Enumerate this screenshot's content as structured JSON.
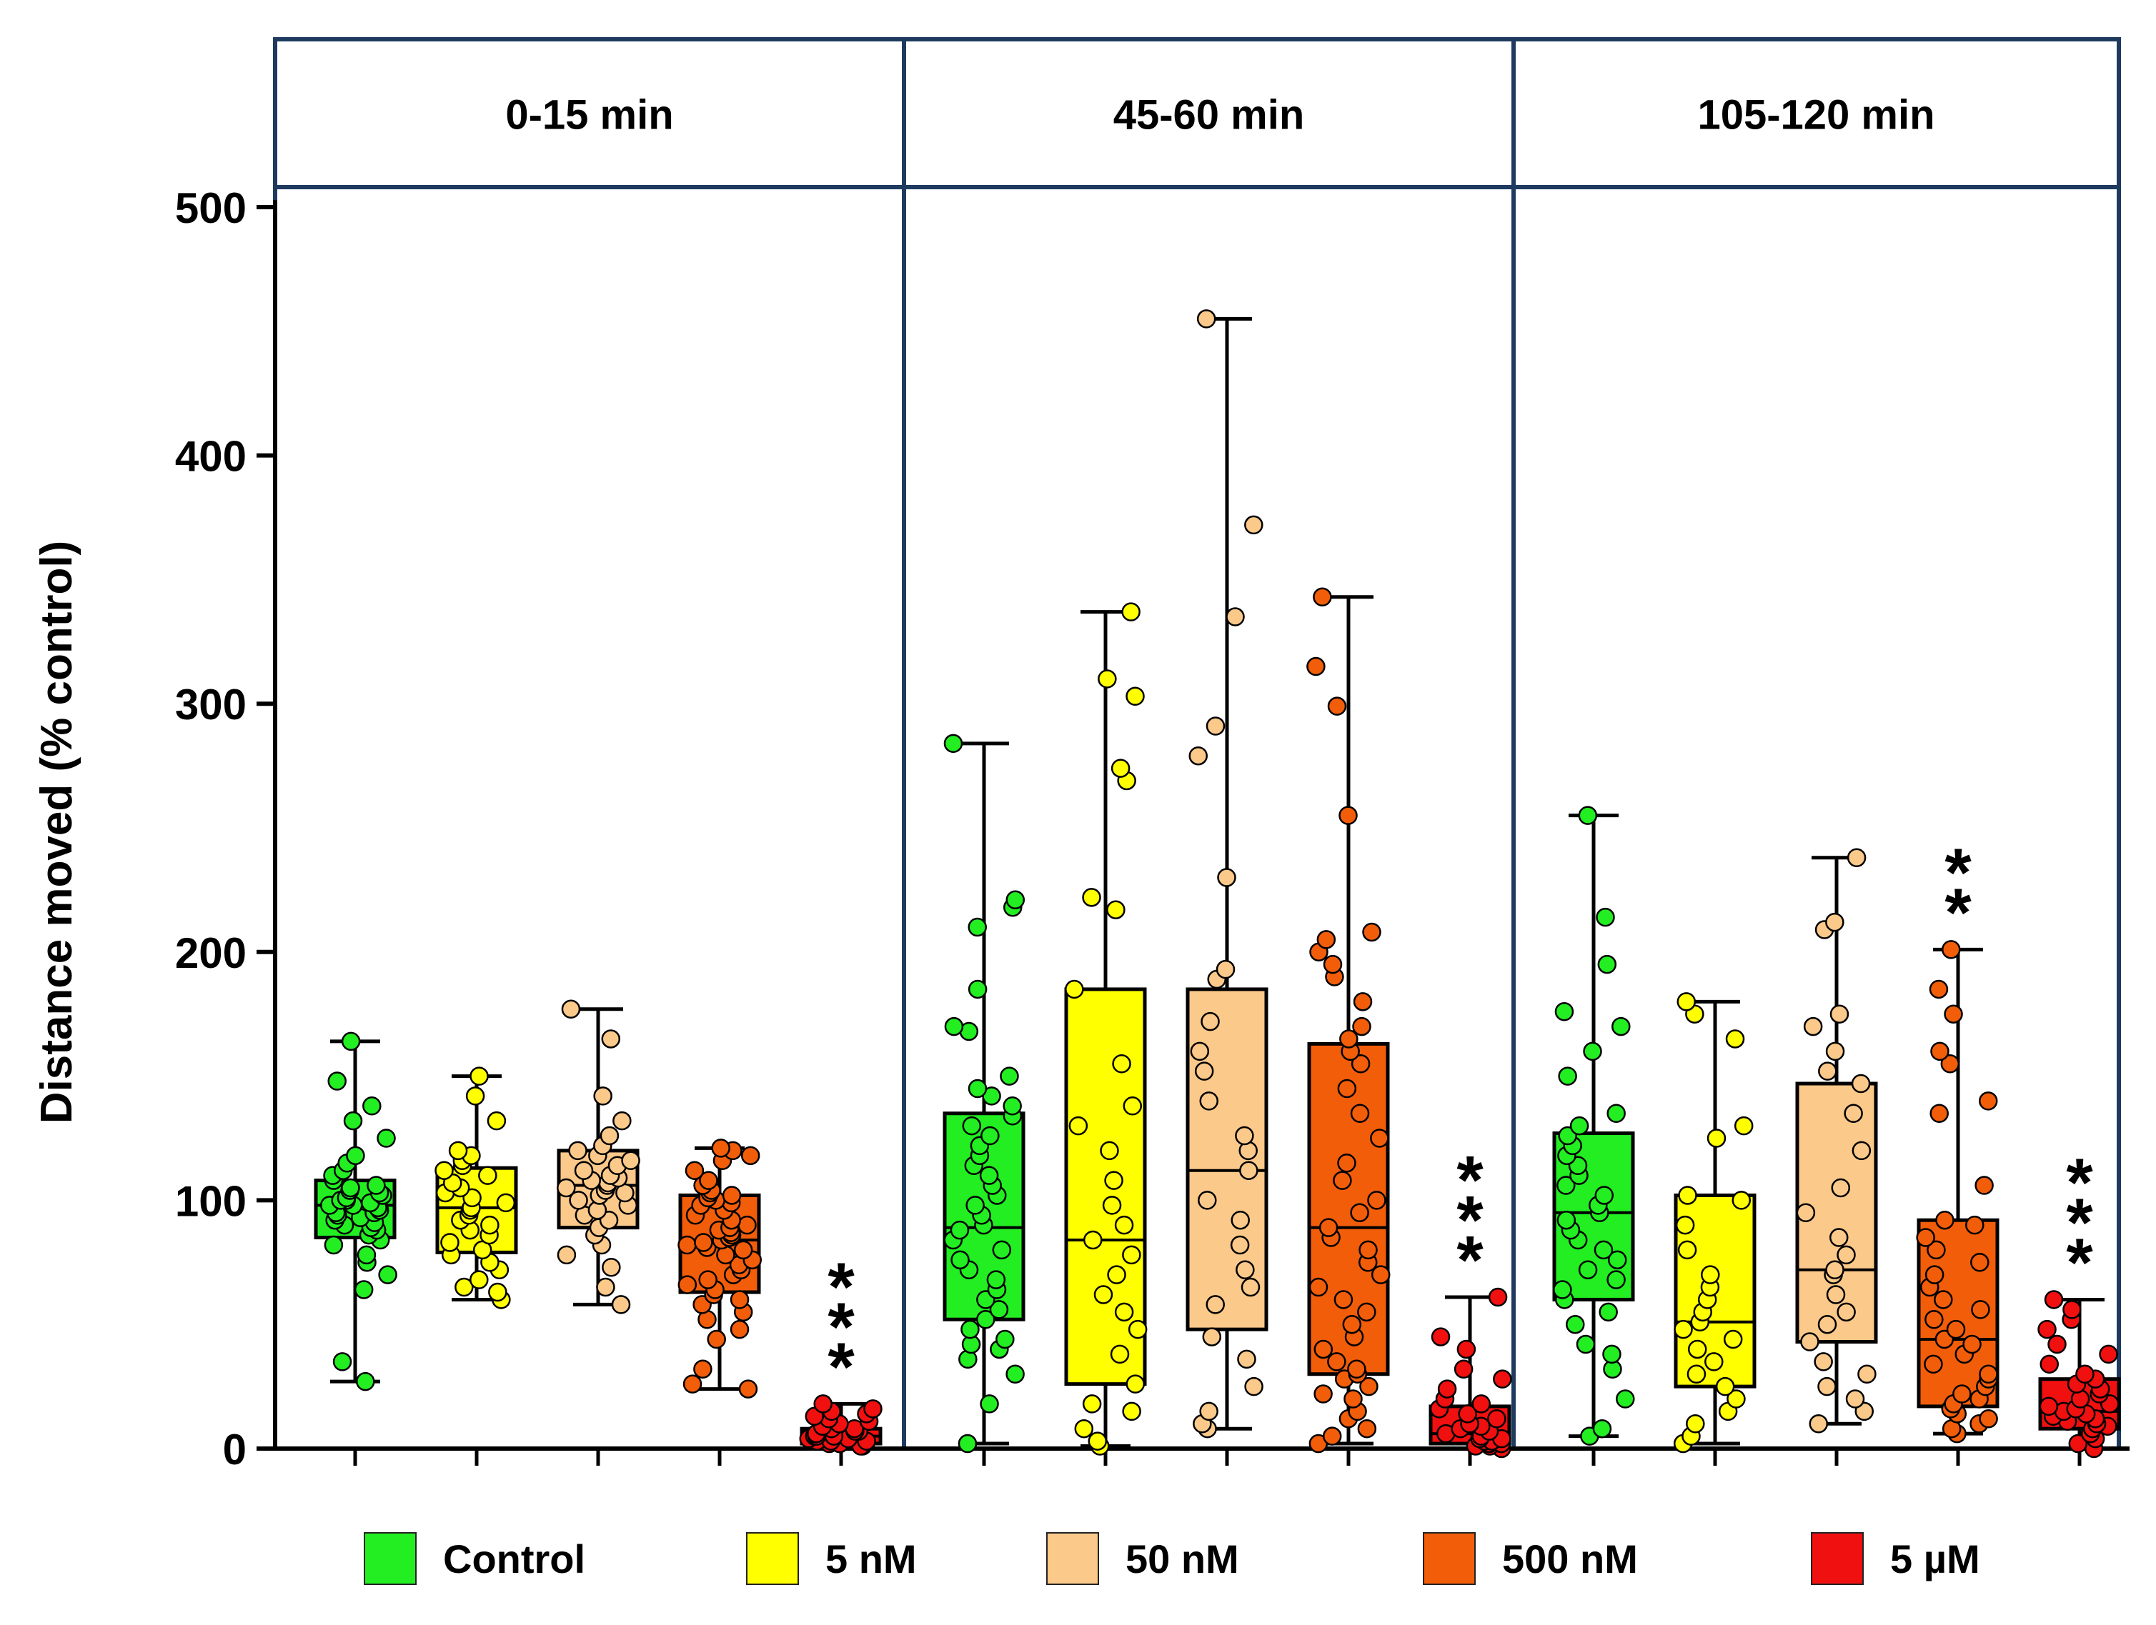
{
  "chart_data": {
    "type": "box",
    "ylabel": "Distance moved (% control)",
    "ylim": [
      0,
      500
    ],
    "yticks": [
      0,
      100,
      200,
      300,
      400,
      500
    ],
    "grid": false,
    "legend_position": "bottom",
    "panels": [
      {
        "label": "0-15 min"
      },
      {
        "label": "45-60 min"
      },
      {
        "label": "105-120 min"
      }
    ],
    "groups": [
      {
        "name": "Control",
        "color": "#22ee22"
      },
      {
        "name": "5 nM",
        "color": "#ffff00"
      },
      {
        "name": "50 nM",
        "color": "#fbc98a"
      },
      {
        "name": "500 nM",
        "color": "#f25d0a"
      },
      {
        "name": "5 µM",
        "color": "#f01010"
      }
    ],
    "boxes": [
      {
        "panel": 0,
        "group": 0,
        "min": 27,
        "q1": 85,
        "median": 98,
        "q3": 108,
        "max": 164,
        "points": [
          27,
          35,
          64,
          70,
          75,
          78,
          82,
          84,
          86,
          88,
          89,
          90,
          91,
          92,
          93,
          94,
          95,
          95,
          96,
          97,
          98,
          98,
          99,
          100,
          100,
          101,
          102,
          103,
          104,
          105,
          106,
          108,
          110,
          112,
          115,
          118,
          125,
          132,
          138,
          148,
          164
        ]
      },
      {
        "panel": 0,
        "group": 1,
        "min": 60,
        "q1": 79,
        "median": 97,
        "q3": 113,
        "max": 150,
        "points": [
          60,
          63,
          65,
          68,
          72,
          75,
          78,
          80,
          83,
          86,
          88,
          90,
          92,
          94,
          96,
          97,
          99,
          101,
          103,
          105,
          107,
          110,
          112,
          114,
          116,
          118,
          120,
          132,
          142,
          150
        ]
      },
      {
        "panel": 0,
        "group": 2,
        "min": 58,
        "q1": 89,
        "median": 106,
        "q3": 120,
        "max": 177,
        "points": [
          58,
          65,
          73,
          78,
          82,
          86,
          89,
          92,
          94,
          96,
          98,
          100,
          102,
          103,
          104,
          105,
          106,
          107,
          108,
          109,
          110,
          112,
          114,
          116,
          118,
          120,
          122,
          126,
          132,
          142,
          165,
          177
        ]
      },
      {
        "panel": 0,
        "group": 3,
        "min": 24,
        "q1": 63,
        "median": 84,
        "q3": 102,
        "max": 121,
        "points": [
          24,
          26,
          32,
          44,
          48,
          52,
          55,
          58,
          60,
          62,
          64,
          66,
          68,
          70,
          72,
          74,
          76,
          78,
          80,
          81,
          82,
          83,
          84,
          85,
          86,
          87,
          88,
          89,
          90,
          92,
          94,
          96,
          98,
          99,
          100,
          101,
          102,
          103,
          104,
          106,
          108,
          112,
          116,
          118,
          120,
          121
        ]
      },
      {
        "panel": 0,
        "group": 4,
        "min": 1,
        "q1": 2,
        "median": 5,
        "q3": 8,
        "max": 18,
        "points": [
          1,
          1,
          2,
          2,
          2,
          3,
          3,
          3,
          4,
          4,
          5,
          5,
          5,
          6,
          6,
          7,
          7,
          8,
          8,
          9,
          10,
          11,
          12,
          13,
          14,
          15,
          16,
          18
        ]
      },
      {
        "panel": 1,
        "group": 0,
        "min": 2,
        "q1": 52,
        "median": 89,
        "q3": 135,
        "max": 284,
        "points": [
          2,
          18,
          30,
          36,
          40,
          42,
          44,
          48,
          52,
          56,
          60,
          64,
          68,
          72,
          76,
          80,
          84,
          88,
          90,
          94,
          98,
          102,
          106,
          110,
          114,
          118,
          122,
          126,
          130,
          134,
          138,
          142,
          145,
          150,
          168,
          170,
          185,
          210,
          218,
          221,
          284
        ]
      },
      {
        "panel": 1,
        "group": 1,
        "min": 1,
        "q1": 26,
        "median": 84,
        "q3": 185,
        "max": 337,
        "points": [
          1,
          3,
          8,
          15,
          18,
          26,
          38,
          48,
          55,
          62,
          70,
          78,
          84,
          90,
          98,
          108,
          120,
          130,
          138,
          155,
          185,
          217,
          222,
          269,
          274,
          303,
          310,
          337
        ]
      },
      {
        "panel": 1,
        "group": 2,
        "min": 8,
        "q1": 48,
        "median": 112,
        "q3": 185,
        "max": 455,
        "points": [
          8,
          10,
          15,
          25,
          36,
          45,
          58,
          65,
          72,
          82,
          92,
          100,
          112,
          120,
          126,
          140,
          152,
          160,
          172,
          189,
          193,
          230,
          279,
          291,
          335,
          372,
          455
        ]
      },
      {
        "panel": 1,
        "group": 3,
        "min": 2,
        "q1": 30,
        "median": 89,
        "q3": 163,
        "max": 343,
        "points": [
          2,
          5,
          8,
          12,
          15,
          20,
          22,
          25,
          28,
          30,
          32,
          35,
          40,
          45,
          50,
          55,
          60,
          65,
          70,
          75,
          80,
          85,
          89,
          95,
          100,
          108,
          115,
          125,
          135,
          145,
          155,
          160,
          165,
          170,
          180,
          190,
          195,
          200,
          205,
          208,
          255,
          299,
          315,
          343
        ]
      },
      {
        "panel": 1,
        "group": 4,
        "min": 0,
        "q1": 2,
        "median": 6,
        "q3": 17,
        "max": 61,
        "points": [
          0,
          1,
          1,
          2,
          2,
          3,
          3,
          4,
          4,
          5,
          6,
          7,
          8,
          9,
          10,
          12,
          14,
          16,
          18,
          20,
          24,
          28,
          32,
          40,
          45,
          61
        ]
      },
      {
        "panel": 2,
        "group": 0,
        "min": 5,
        "q1": 60,
        "median": 95,
        "q3": 127,
        "max": 255,
        "points": [
          5,
          8,
          20,
          32,
          38,
          42,
          50,
          55,
          60,
          64,
          68,
          72,
          76,
          80,
          84,
          88,
          92,
          95,
          98,
          102,
          106,
          110,
          114,
          118,
          122,
          126,
          130,
          135,
          150,
          160,
          170,
          176,
          195,
          214,
          255
        ]
      },
      {
        "panel": 2,
        "group": 1,
        "min": 2,
        "q1": 25,
        "median": 51,
        "q3": 102,
        "max": 180,
        "points": [
          2,
          5,
          10,
          15,
          20,
          25,
          30,
          35,
          40,
          44,
          48,
          51,
          55,
          60,
          65,
          70,
          80,
          90,
          100,
          102,
          125,
          130,
          165,
          175,
          180
        ]
      },
      {
        "panel": 2,
        "group": 2,
        "min": 10,
        "q1": 43,
        "median": 72,
        "q3": 147,
        "max": 238,
        "points": [
          10,
          15,
          20,
          25,
          30,
          35,
          43,
          50,
          55,
          62,
          70,
          72,
          78,
          85,
          95,
          105,
          120,
          135,
          147,
          152,
          160,
          170,
          175,
          209,
          212,
          238
        ]
      },
      {
        "panel": 2,
        "group": 3,
        "min": 6,
        "q1": 17,
        "median": 44,
        "q3": 92,
        "max": 201,
        "points": [
          6,
          8,
          10,
          12,
          14,
          16,
          18,
          20,
          22,
          25,
          28,
          30,
          34,
          38,
          42,
          44,
          48,
          52,
          56,
          60,
          65,
          70,
          75,
          80,
          85,
          90,
          92,
          106,
          135,
          140,
          155,
          160,
          175,
          185,
          201
        ]
      },
      {
        "panel": 2,
        "group": 4,
        "min": 0,
        "q1": 8,
        "median": 15,
        "q3": 28,
        "max": 60,
        "points": [
          0,
          2,
          4,
          6,
          8,
          9,
          10,
          11,
          12,
          13,
          14,
          15,
          16,
          17,
          18,
          20,
          22,
          24,
          26,
          28,
          30,
          34,
          38,
          42,
          48,
          52,
          56,
          60
        ]
      }
    ],
    "annotations": [
      {
        "panel": 0,
        "group": 4,
        "text": "***",
        "y": 20
      },
      {
        "panel": 1,
        "group": 4,
        "text": "***",
        "y": 63
      },
      {
        "panel": 2,
        "group": 3,
        "text": "**",
        "y": 203
      },
      {
        "panel": 2,
        "group": 4,
        "text": "***",
        "y": 62
      }
    ]
  }
}
